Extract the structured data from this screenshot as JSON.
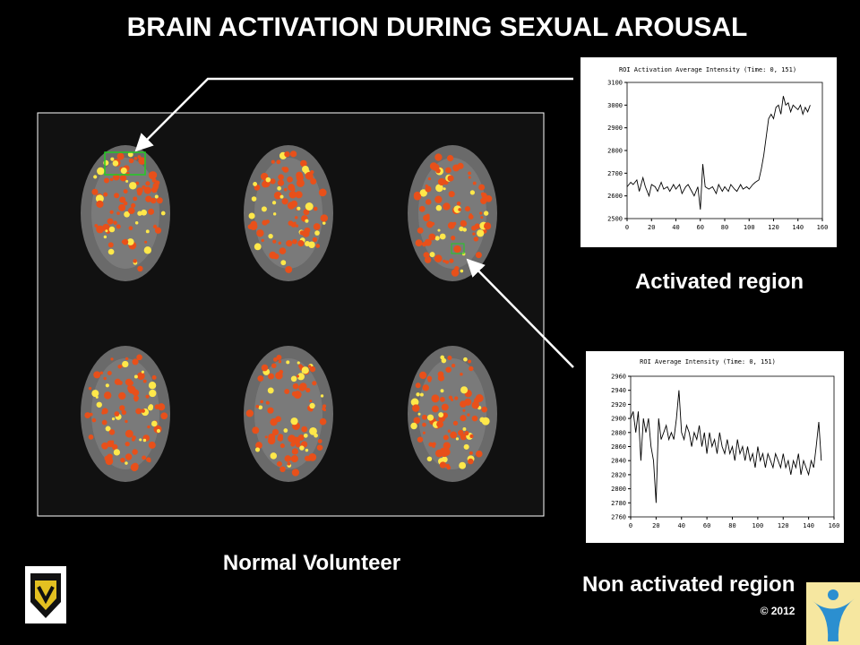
{
  "slide": {
    "title": "BRAIN ACTIVATION DURING SEXUAL AROUSAL",
    "activated_label": "Activated region",
    "volunteer_label": "Normal Volunteer",
    "non_activated_label": "Non activated region",
    "copyright": "© 2012"
  },
  "chart_data": [
    {
      "type": "line",
      "title": "ROI Activation Average Intensity (Time: 0, 151)",
      "color": "#000000",
      "xlim": [
        0,
        160
      ],
      "xticks": [
        0,
        20,
        40,
        60,
        80,
        100,
        120,
        140,
        160
      ],
      "ylim": [
        2500,
        3100
      ],
      "yticks": [
        2500,
        2600,
        2700,
        2800,
        2900,
        3000,
        3100
      ],
      "x": [
        0,
        3,
        5,
        8,
        10,
        13,
        15,
        18,
        20,
        23,
        25,
        28,
        30,
        33,
        35,
        38,
        40,
        43,
        45,
        48,
        50,
        53,
        55,
        58,
        60,
        62,
        64,
        67,
        70,
        73,
        75,
        78,
        80,
        83,
        85,
        88,
        90,
        93,
        95,
        98,
        100,
        103,
        105,
        108,
        110,
        112,
        114,
        116,
        118,
        120,
        122,
        124,
        126,
        128,
        130,
        132,
        134,
        136,
        138,
        140,
        142,
        144,
        146,
        148,
        150
      ],
      "values": [
        2640,
        2660,
        2650,
        2670,
        2620,
        2680,
        2640,
        2600,
        2650,
        2640,
        2620,
        2660,
        2630,
        2640,
        2620,
        2650,
        2630,
        2650,
        2610,
        2640,
        2650,
        2620,
        2600,
        2640,
        2540,
        2740,
        2640,
        2630,
        2640,
        2610,
        2650,
        2620,
        2640,
        2620,
        2650,
        2630,
        2620,
        2650,
        2630,
        2640,
        2630,
        2650,
        2660,
        2670,
        2720,
        2780,
        2860,
        2940,
        2960,
        2940,
        2990,
        3000,
        2960,
        3040,
        3000,
        3010,
        2970,
        3000,
        2990,
        2980,
        3000,
        2960,
        2990,
        2970,
        3000
      ]
    },
    {
      "type": "line",
      "title": "ROI Average Intensity (Time: 0, 151)",
      "color": "#000000",
      "xlim": [
        0,
        160
      ],
      "xticks": [
        0,
        20,
        40,
        60,
        80,
        100,
        120,
        140,
        160
      ],
      "ylim": [
        2760,
        2960
      ],
      "yticks": [
        2760,
        2780,
        2800,
        2820,
        2840,
        2860,
        2880,
        2900,
        2920,
        2940,
        2960
      ],
      "x": [
        0,
        2,
        4,
        6,
        8,
        10,
        12,
        14,
        16,
        18,
        20,
        22,
        24,
        26,
        28,
        30,
        32,
        34,
        36,
        38,
        40,
        42,
        44,
        46,
        48,
        50,
        52,
        54,
        56,
        58,
        60,
        62,
        64,
        66,
        68,
        70,
        72,
        74,
        76,
        78,
        80,
        82,
        84,
        86,
        88,
        90,
        92,
        94,
        96,
        98,
        100,
        102,
        104,
        106,
        108,
        110,
        112,
        114,
        116,
        118,
        120,
        122,
        124,
        126,
        128,
        130,
        132,
        134,
        136,
        138,
        140,
        142,
        144,
        146,
        148,
        150
      ],
      "values": [
        2900,
        2910,
        2880,
        2910,
        2840,
        2900,
        2880,
        2900,
        2860,
        2840,
        2780,
        2900,
        2870,
        2880,
        2890,
        2870,
        2880,
        2870,
        2900,
        2940,
        2880,
        2870,
        2890,
        2880,
        2860,
        2880,
        2870,
        2890,
        2860,
        2880,
        2850,
        2880,
        2860,
        2870,
        2850,
        2880,
        2860,
        2850,
        2870,
        2850,
        2860,
        2840,
        2870,
        2850,
        2860,
        2840,
        2860,
        2840,
        2850,
        2830,
        2860,
        2840,
        2850,
        2830,
        2850,
        2840,
        2830,
        2850,
        2840,
        2830,
        2850,
        2830,
        2840,
        2820,
        2840,
        2830,
        2850,
        2820,
        2840,
        2830,
        2820,
        2840,
        2830,
        2860,
        2895,
        2840
      ]
    }
  ]
}
